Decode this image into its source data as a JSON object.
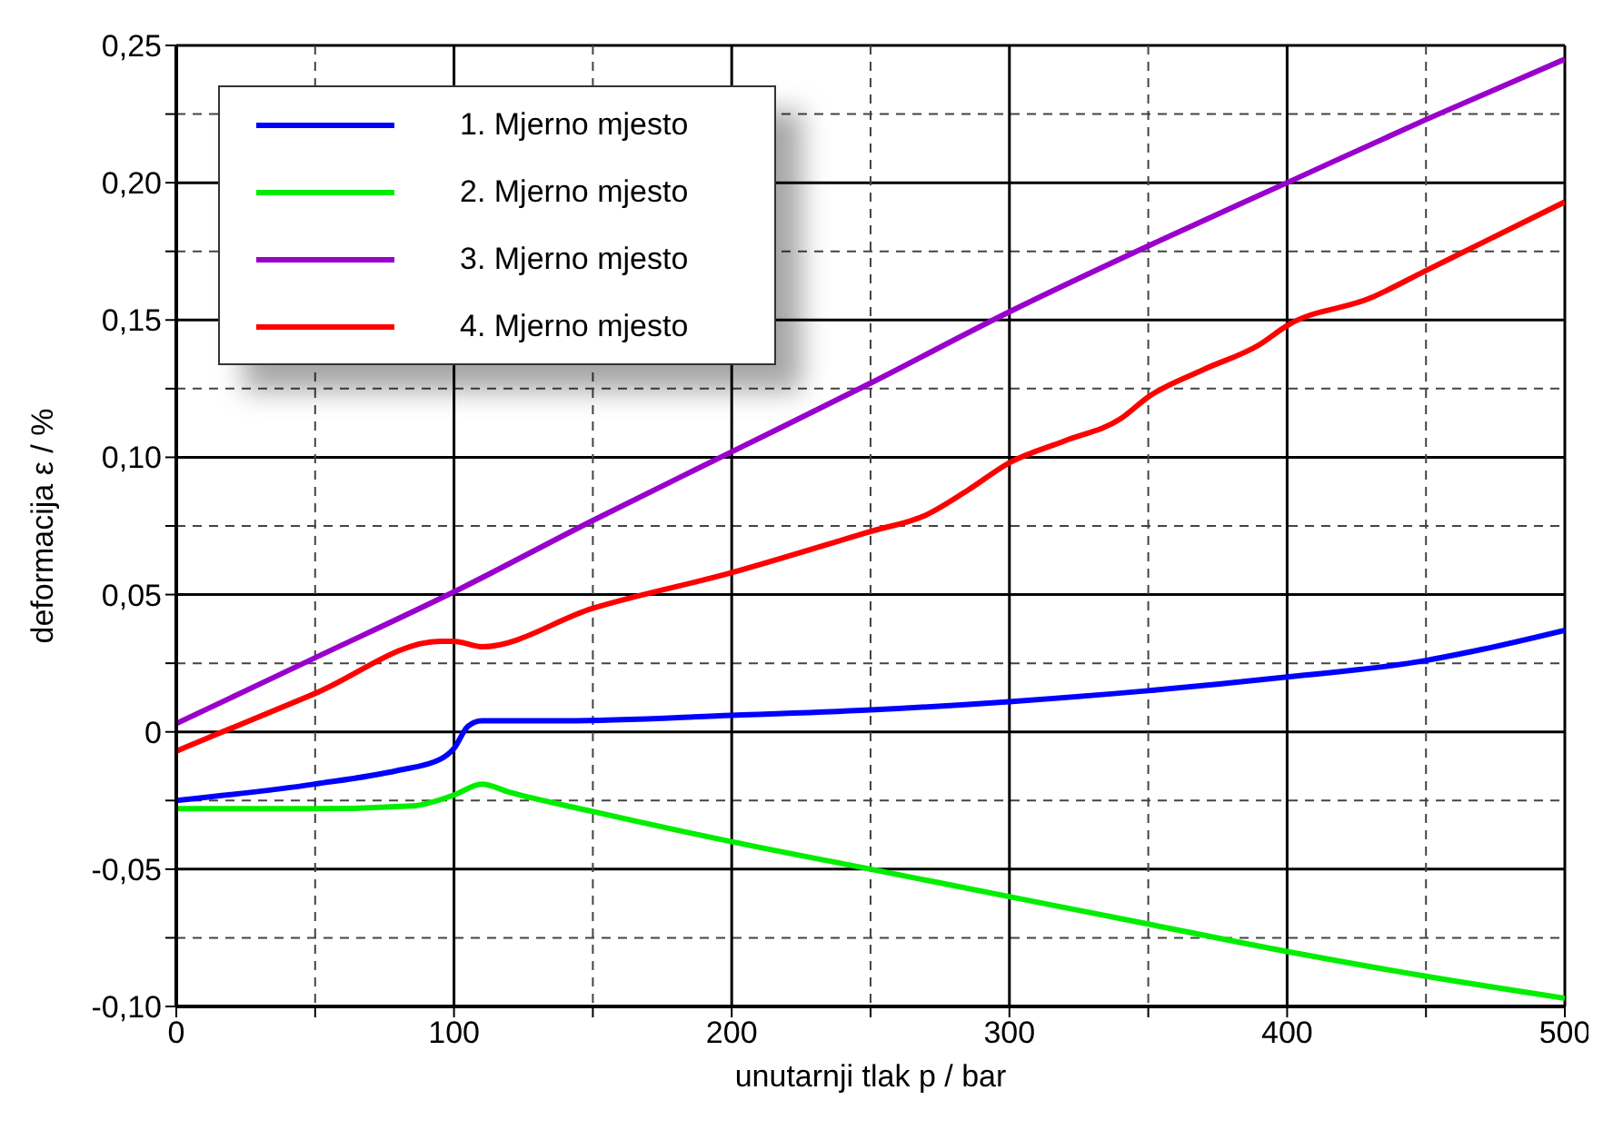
{
  "chart_data": {
    "type": "line",
    "xlabel": "unutarnji tlak p / bar",
    "ylabel": "deformacija ε / %",
    "xlim": [
      0,
      500
    ],
    "ylim": [
      -0.1,
      0.25
    ],
    "xticks": [
      0,
      {
        "value": 50,
        "label": null
      },
      100,
      {
        "value": 150,
        "label": null
      },
      200,
      {
        "value": 250,
        "label": null
      },
      300,
      {
        "value": 350,
        "label": null
      },
      400,
      {
        "value": 450,
        "label": null
      },
      500
    ],
    "yticks": [
      {
        "value": -0.1,
        "label": "-0,10"
      },
      {
        "value": -0.075,
        "label": null
      },
      {
        "value": -0.05,
        "label": "-0,05"
      },
      {
        "value": -0.025,
        "label": null
      },
      0,
      {
        "value": 0.025,
        "label": null
      },
      {
        "value": 0.05,
        "label": "0,05"
      },
      {
        "value": 0.075,
        "label": null
      },
      {
        "value": 0.1,
        "label": "0,10"
      },
      {
        "value": 0.125,
        "label": null
      },
      {
        "value": 0.15,
        "label": "0,15"
      },
      {
        "value": 0.175,
        "label": null
      },
      {
        "value": 0.2,
        "label": "0,20"
      },
      {
        "value": 0.225,
        "label": null
      },
      {
        "value": 0.25,
        "label": "0,25"
      }
    ],
    "grid": true,
    "legend": "top left",
    "marker": "none",
    "line_style": "solid",
    "series": [
      {
        "name": "1. Mjerno mjesto",
        "color": "#0000ff",
        "x": [
          0,
          50,
          80,
          95,
          100,
          105,
          110,
          140,
          200,
          250,
          300,
          350,
          400,
          450,
          470,
          500
        ],
        "values": [
          -0.025,
          -0.019,
          -0.014,
          -0.01,
          -0.006,
          0.002,
          0.004,
          0.004,
          0.006,
          0.008,
          0.011,
          0.015,
          0.02,
          0.026,
          0.03,
          0.037
        ]
      },
      {
        "name": "2. Mjerno mjesto",
        "color": "#00ee00",
        "x": [
          0,
          50,
          85,
          100,
          110,
          120,
          150,
          200,
          250,
          300,
          350,
          400,
          450,
          500
        ],
        "values": [
          -0.028,
          -0.028,
          -0.027,
          -0.023,
          -0.019,
          -0.022,
          -0.029,
          -0.04,
          -0.05,
          -0.06,
          -0.07,
          -0.08,
          -0.089,
          -0.097
        ]
      },
      {
        "name": "3. Mjerno mjesto",
        "color": "#9900cc",
        "x": [
          0,
          50,
          100,
          150,
          200,
          250,
          300,
          350,
          400,
          450,
          500
        ],
        "values": [
          0.003,
          0.027,
          0.051,
          0.077,
          0.102,
          0.127,
          0.153,
          0.177,
          0.2,
          0.223,
          0.245
        ]
      },
      {
        "name": "4. Mjerno mjesto",
        "color": "#ff0000",
        "x": [
          0,
          50,
          95,
          100,
          110,
          150,
          200,
          250,
          270,
          285,
          300,
          320,
          340,
          350,
          370,
          390,
          400,
          430,
          450,
          470,
          500
        ],
        "values": [
          -0.007,
          0.014,
          0.033,
          0.033,
          0.031,
          0.045,
          0.058,
          0.073,
          0.079,
          0.088,
          0.098,
          0.106,
          0.114,
          0.122,
          0.132,
          0.141,
          0.148,
          0.158,
          0.168,
          0.178,
          0.193
        ]
      }
    ]
  }
}
